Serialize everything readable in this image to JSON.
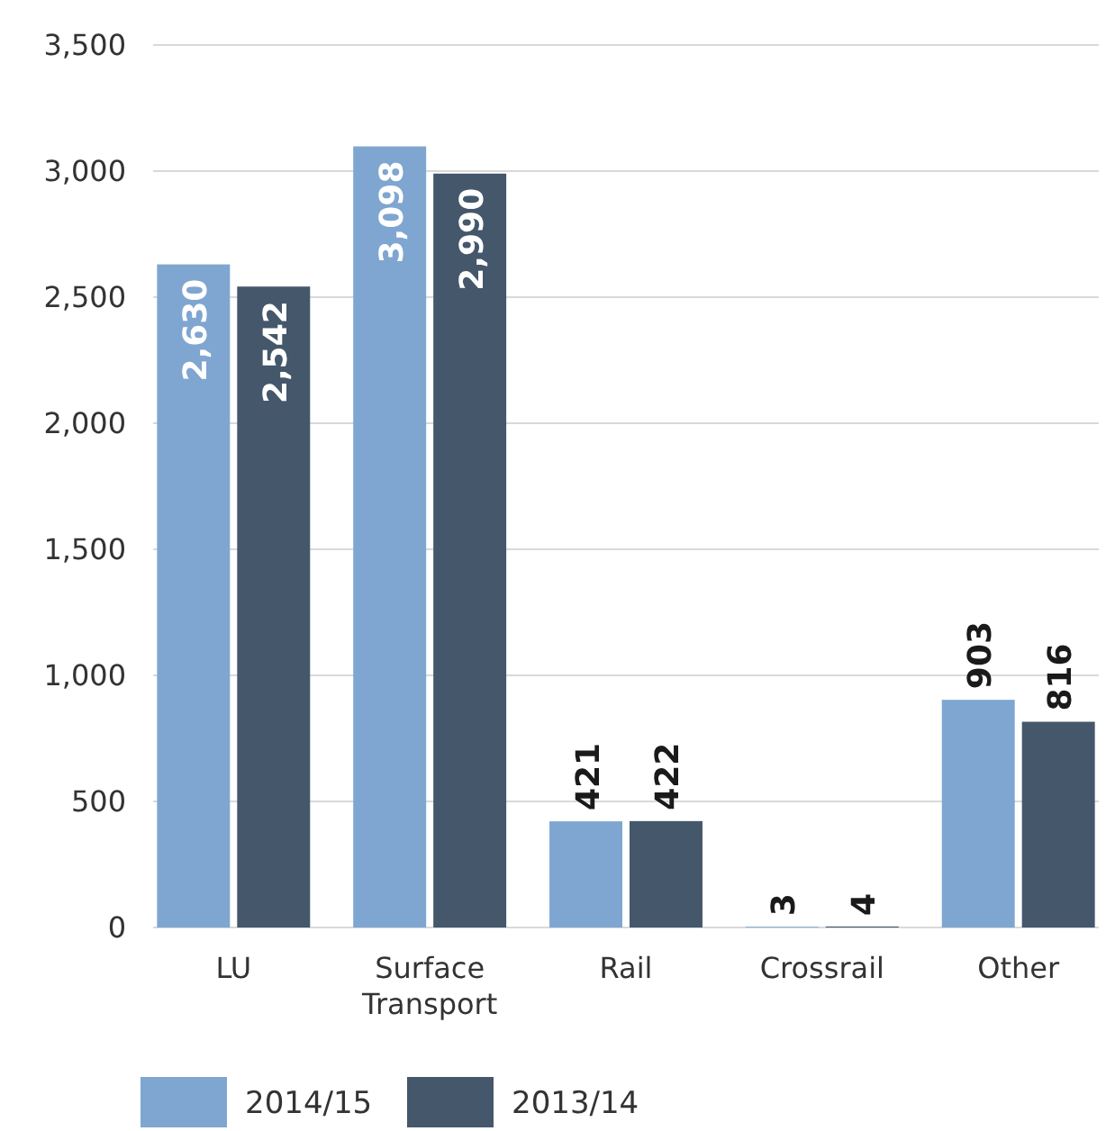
{
  "chart_data": {
    "type": "bar",
    "categories": [
      "LU",
      "Surface Transport",
      "Rail",
      "Crossrail",
      "Other"
    ],
    "series": [
      {
        "name": "2014/15",
        "color": "#7fa6d1",
        "values": [
          2630,
          3098,
          421,
          3,
          903
        ],
        "value_labels": [
          "2,630",
          "3,098",
          "421",
          "3",
          "903"
        ]
      },
      {
        "name": "2013/14",
        "color": "#44576b",
        "values": [
          2542,
          2990,
          422,
          4,
          816
        ],
        "value_labels": [
          "2,542",
          "2,990",
          "422",
          "4",
          "816"
        ]
      }
    ],
    "ylim": [
      0,
      3500
    ],
    "yticks": [
      0,
      500,
      {
        "value": 1000,
        "label": "1,000"
      },
      {
        "value": 1500,
        "label": "1,500"
      },
      {
        "value": 2000,
        "label": "2,000"
      },
      {
        "value": 2500,
        "label": "2,500"
      },
      {
        "value": 3000,
        "label": "3,000"
      },
      {
        "value": 3500,
        "label": "3,500"
      }
    ],
    "grid": "y",
    "legend": "bottom"
  }
}
